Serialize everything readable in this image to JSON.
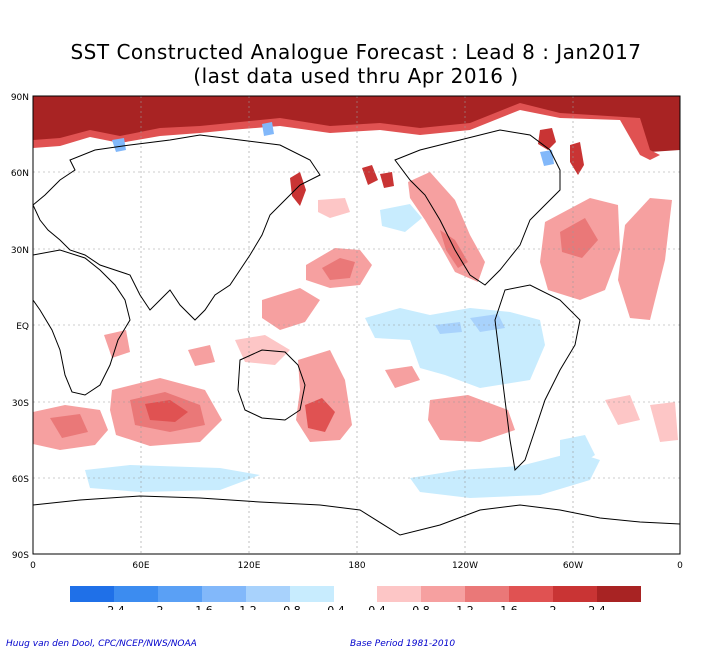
{
  "title_line1": "SST Constructed Analogue Forecast : Lead 8 : Jan2017",
  "title_line2": "(last data used thru Apr 2016 )",
  "lat_labels": [
    "90N",
    "60N",
    "30N",
    "EQ",
    "30S",
    "60S",
    "90S"
  ],
  "lon_labels": [
    "0",
    "60E",
    "120E",
    "180",
    "120W",
    "60W",
    "0"
  ],
  "colorbar": {
    "negative_colors": [
      "#1f70e8",
      "#3c8cf0",
      "#5aa0f5",
      "#82b8fa",
      "#a8d2fc",
      "#c8ecfe"
    ],
    "positive_colors": [
      "#fdc6c6",
      "#f6a0a0",
      "#ea7878",
      "#e05252",
      "#c93434",
      "#a82323"
    ],
    "labels": [
      "-2.4",
      "-2",
      "-1.6",
      "-1.2",
      "-0.8",
      "-0.4",
      "0.4",
      "0.8",
      "1.2",
      "1.6",
      "2",
      "2.4"
    ]
  },
  "credit_left": "Huug van den Dool, CPC/NCEP/NWS/NOAA",
  "credit_right": "Base Period 1981-2010"
}
